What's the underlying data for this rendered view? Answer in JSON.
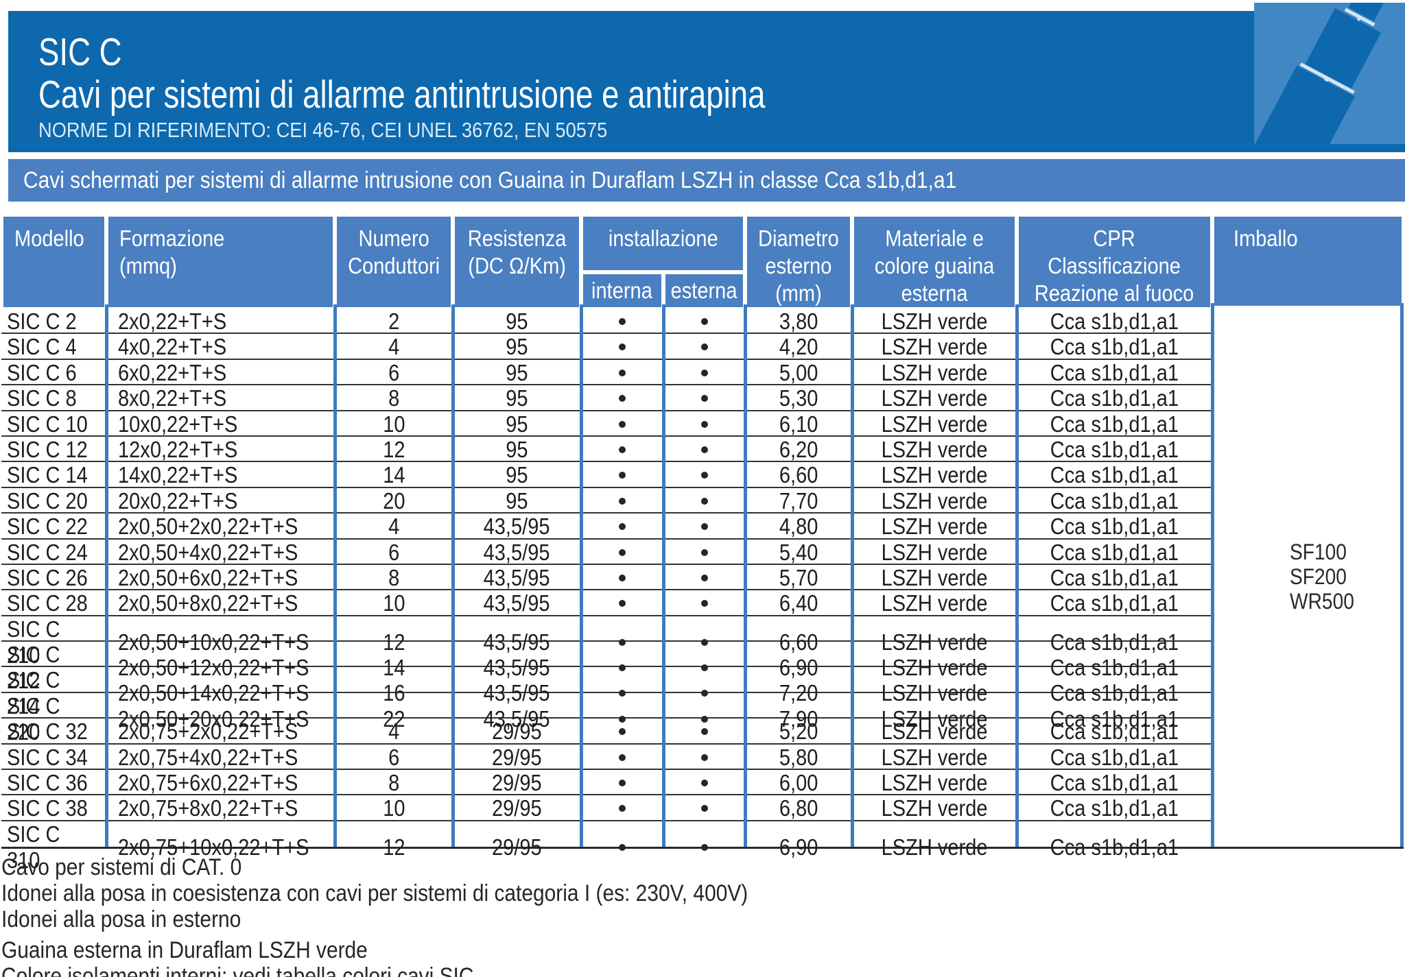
{
  "header": {
    "product": "SIC C",
    "subtitle": "Cavi per sistemi di allarme antintrusione e antirapina",
    "norms": "NORME DI RIFERIMENTO: CEI 46-76, CEI UNEL 36762, EN 50575"
  },
  "banner": "Cavi schermati per sistemi di allarme intrusione con Guaina in Duraflam LSZH in classe Cca s1b,d1,a1",
  "table": {
    "headers": {
      "modello": "Modello",
      "formazione": "Formazione\n(mmq)",
      "conduttori": "Numero\nConduttori",
      "resistenza": "Resistenza\n(DC Ω/Km)",
      "installazione": "installazione",
      "interna": "interna",
      "esterna": "esterna",
      "diametro": "Diametro\nesterno\n(mm)",
      "materiale": "Materiale e\ncolore guaina\nesterna",
      "cpr": "CPR\nClassificazione\nReazione al fuoco",
      "imballo": "Imballo"
    },
    "rows": [
      {
        "modello": "SIC C 2",
        "formazione": "2x0,22+T+S",
        "conduttori": "2",
        "resistenza": "95",
        "interna": "•",
        "esterna": "•",
        "diametro": "3,80",
        "materiale": "LSZH verde",
        "cpr": "Cca s1b,d1,a1"
      },
      {
        "modello": "SIC C 4",
        "formazione": "4x0,22+T+S",
        "conduttori": "4",
        "resistenza": "95",
        "interna": "•",
        "esterna": "•",
        "diametro": "4,20",
        "materiale": "LSZH verde",
        "cpr": "Cca s1b,d1,a1"
      },
      {
        "modello": "SIC C 6",
        "formazione": "6x0,22+T+S",
        "conduttori": "6",
        "resistenza": "95",
        "interna": "•",
        "esterna": "•",
        "diametro": "5,00",
        "materiale": "LSZH verde",
        "cpr": "Cca s1b,d1,a1"
      },
      {
        "modello": "SIC C 8",
        "formazione": "8x0,22+T+S",
        "conduttori": "8",
        "resistenza": "95",
        "interna": "•",
        "esterna": "•",
        "diametro": "5,30",
        "materiale": "LSZH verde",
        "cpr": "Cca s1b,d1,a1"
      },
      {
        "modello": "SIC C 10",
        "formazione": "10x0,22+T+S",
        "conduttori": "10",
        "resistenza": "95",
        "interna": "•",
        "esterna": "•",
        "diametro": "6,10",
        "materiale": "LSZH verde",
        "cpr": "Cca s1b,d1,a1"
      },
      {
        "modello": "SIC C 12",
        "formazione": "12x0,22+T+S",
        "conduttori": "12",
        "resistenza": "95",
        "interna": "•",
        "esterna": "•",
        "diametro": "6,20",
        "materiale": "LSZH verde",
        "cpr": "Cca s1b,d1,a1"
      },
      {
        "modello": "SIC C 14",
        "formazione": "14x0,22+T+S",
        "conduttori": "14",
        "resistenza": "95",
        "interna": "•",
        "esterna": "•",
        "diametro": "6,60",
        "materiale": "LSZH verde",
        "cpr": "Cca s1b,d1,a1"
      },
      {
        "modello": "SIC C 20",
        "formazione": "20x0,22+T+S",
        "conduttori": "20",
        "resistenza": "95",
        "interna": "•",
        "esterna": "•",
        "diametro": "7,70",
        "materiale": "LSZH verde",
        "cpr": "Cca s1b,d1,a1"
      },
      {
        "modello": "SIC C 22",
        "formazione": "2x0,50+2x0,22+T+S",
        "conduttori": "4",
        "resistenza": "43,5/95",
        "interna": "•",
        "esterna": "•",
        "diametro": "4,80",
        "materiale": "LSZH verde",
        "cpr": "Cca s1b,d1,a1"
      },
      {
        "modello": "SIC C 24",
        "formazione": "2x0,50+4x0,22+T+S",
        "conduttori": "6",
        "resistenza": "43,5/95",
        "interna": "•",
        "esterna": "•",
        "diametro": "5,40",
        "materiale": "LSZH verde",
        "cpr": "Cca s1b,d1,a1"
      },
      {
        "modello": "SIC C 26",
        "formazione": "2x0,50+6x0,22+T+S",
        "conduttori": "8",
        "resistenza": "43,5/95",
        "interna": "•",
        "esterna": "•",
        "diametro": "5,70",
        "materiale": "LSZH verde",
        "cpr": "Cca s1b,d1,a1"
      },
      {
        "modello": "SIC C 28",
        "formazione": "2x0,50+8x0,22+T+S",
        "conduttori": "10",
        "resistenza": "43,5/95",
        "interna": "•",
        "esterna": "•",
        "diametro": "6,40",
        "materiale": "LSZH verde",
        "cpr": "Cca s1b,d1,a1"
      },
      {
        "modello": "SIC C 210",
        "formazione": "2x0,50+10x0,22+T+S",
        "conduttori": "12",
        "resistenza": "43,5/95",
        "interna": "•",
        "esterna": "•",
        "diametro": "6,60",
        "materiale": "LSZH verde",
        "cpr": "Cca s1b,d1,a1"
      },
      {
        "modello": "SIC C 212",
        "formazione": "2x0,50+12x0,22+T+S",
        "conduttori": "14",
        "resistenza": "43,5/95",
        "interna": "•",
        "esterna": "•",
        "diametro": "6,90",
        "materiale": "LSZH verde",
        "cpr": "Cca s1b,d1,a1"
      },
      {
        "modello": "SIC C 214",
        "formazione": "2x0,50+14x0,22+T+S",
        "conduttori": "16",
        "resistenza": "43,5/95",
        "interna": "•",
        "esterna": "•",
        "diametro": "7,20",
        "materiale": "LSZH verde",
        "cpr": "Cca s1b,d1,a1"
      },
      {
        "modello": "SIC C 220",
        "formazione": "2x0,50+20x0,22+T+S",
        "conduttori": "22",
        "resistenza": "43,5/95",
        "interna": "•",
        "esterna": "•",
        "diametro": "7,90",
        "materiale": "LSZH verde",
        "cpr": "Cca s1b,d1,a1"
      },
      {
        "modello": "SIC C 32",
        "formazione": "2x0,75+2x0,22+T+S",
        "conduttori": "4",
        "resistenza": "29/95",
        "interna": "•",
        "esterna": "•",
        "diametro": "5,20",
        "materiale": "LSZH verde",
        "cpr": "Cca s1b,d1,a1"
      },
      {
        "modello": "SIC C 34",
        "formazione": "2x0,75+4x0,22+T+S",
        "conduttori": "6",
        "resistenza": "29/95",
        "interna": "•",
        "esterna": "•",
        "diametro": "5,80",
        "materiale": "LSZH verde",
        "cpr": "Cca s1b,d1,a1"
      },
      {
        "modello": "SIC C 36",
        "formazione": "2x0,75+6x0,22+T+S",
        "conduttori": "8",
        "resistenza": "29/95",
        "interna": "•",
        "esterna": "•",
        "diametro": "6,00",
        "materiale": "LSZH verde",
        "cpr": "Cca s1b,d1,a1"
      },
      {
        "modello": "SIC C 38",
        "formazione": "2x0,75+8x0,22+T+S",
        "conduttori": "10",
        "resistenza": "29/95",
        "interna": "•",
        "esterna": "•",
        "diametro": "6,80",
        "materiale": "LSZH verde",
        "cpr": "Cca s1b,d1,a1"
      },
      {
        "modello": "SIC C 310",
        "formazione": "2x0,75+10x0,22+T+S",
        "conduttori": "12",
        "resistenza": "29/95",
        "interna": "•",
        "esterna": "•",
        "diametro": "6,90",
        "materiale": "LSZH verde",
        "cpr": "Cca s1b,d1,a1"
      }
    ],
    "imballo_values": [
      "SF100",
      "SF200",
      "WR500"
    ]
  },
  "notes": [
    "Cavo per sistemi di CAT. 0",
    "Idonei alla posa in coesistenza con cavi per sistemi di categoria I (es: 230V, 400V)",
    "Idonei alla posa in esterno",
    "Guaina esterna in Duraflam LSZH verde",
    "Colore isolamenti interni: vedi tabella colori cavi SIC"
  ],
  "colors": {
    "header_band": "#0d68ae",
    "banner_blue": "#4a7fc1",
    "grid_blue": "#3d7bbf",
    "art_square": "#4187c3",
    "row_line": "#333333",
    "text_ink": "#262626"
  }
}
